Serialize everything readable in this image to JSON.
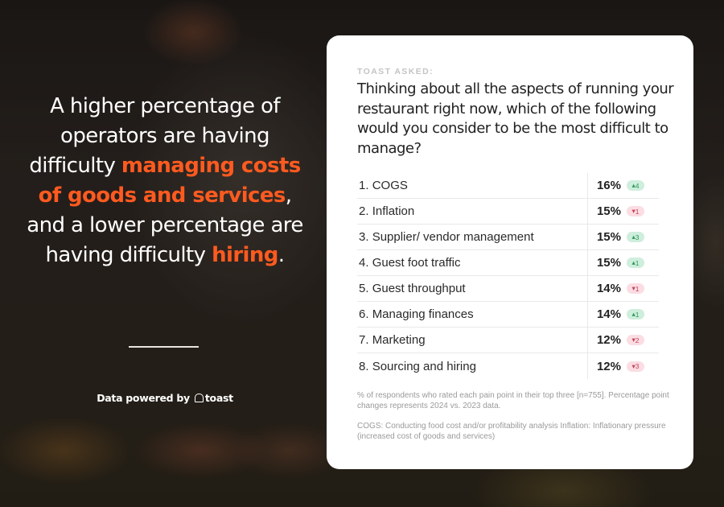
{
  "headline": {
    "segments": [
      {
        "text": "A higher percentage of operators are having difficulty ",
        "highlight": false
      },
      {
        "text": "managing costs of goods and services",
        "highlight": true
      },
      {
        "text": ", and a lower percentage are having difficulty ",
        "highlight": false
      },
      {
        "text": "hiring",
        "highlight": true
      },
      {
        "text": ".",
        "highlight": false
      }
    ],
    "highlight_color": "#ff5a1f"
  },
  "attribution": {
    "prefix": "Data powered by",
    "brand": "toast",
    "brand_icon": "toast-logo-icon"
  },
  "card": {
    "eyebrow": "TOAST ASKED:",
    "question": "Thinking about all the aspects of running your restaurant right now, which of the following would you consider to be the most difficult to manage?",
    "rows": [
      {
        "rank": "1.",
        "label": "COGS",
        "pct": "16%",
        "change": "4",
        "direction": "up"
      },
      {
        "rank": "2.",
        "label": "Inflation",
        "pct": "15%",
        "change": "1",
        "direction": "down"
      },
      {
        "rank": "3.",
        "label": "Supplier/ vendor management",
        "pct": "15%",
        "change": "3",
        "direction": "up"
      },
      {
        "rank": "4.",
        "label": "Guest foot traffic",
        "pct": "15%",
        "change": "1",
        "direction": "up"
      },
      {
        "rank": "5.",
        "label": "Guest throughput",
        "pct": "14%",
        "change": "1",
        "direction": "down"
      },
      {
        "rank": "6.",
        "label": "Managing finances",
        "pct": "14%",
        "change": "1",
        "direction": "up"
      },
      {
        "rank": "7.",
        "label": "Marketing",
        "pct": "12%",
        "change": "2",
        "direction": "down"
      },
      {
        "rank": "8.",
        "label": "Sourcing and hiring",
        "pct": "12%",
        "change": "3",
        "direction": "down"
      }
    ],
    "footnotes": [
      " % of respondents who rated each pain point in their top three [n=755]. Percentage point changes represents 2024 vs. 2023 data.",
      "COGS: Conducting food cost and/or profitability analysis Inflation: Inflationary pressure (increased cost of goods and services)"
    ],
    "colors": {
      "up_bg": "#cfeedd",
      "up_fg": "#2e9a5a",
      "down_bg": "#fbdde3",
      "down_fg": "#c4425a"
    }
  }
}
